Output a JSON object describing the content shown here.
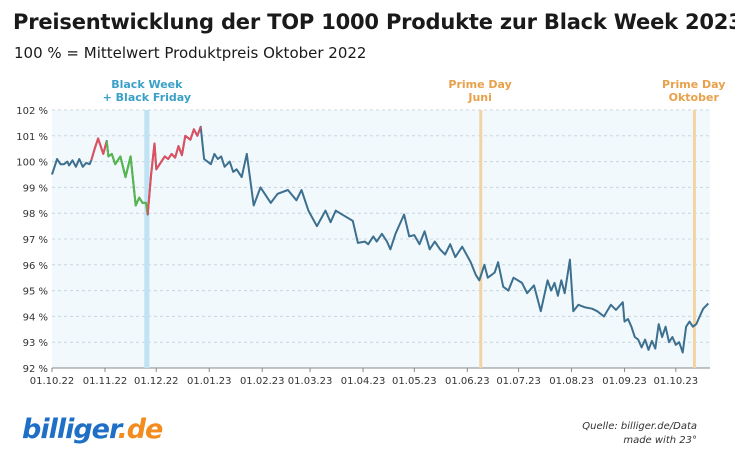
{
  "header": {
    "title": "Preisentwicklung der TOP 1000 Produkte zur Black Week 2023",
    "subtitle": "100 % = Mittelwert Produktpreis Oktober 2022"
  },
  "footer": {
    "logo_main": "billiger",
    "logo_tld": ".de",
    "source": "Quelle: billiger.de/Data",
    "made_with": "made with 23°"
  },
  "chart_data": {
    "type": "line",
    "title": "Preisentwicklung der TOP 1000 Produkte zur Black Week 2023",
    "subtitle": "100 % = Mittelwert Produktpreis Oktober 2022",
    "x_start": "2022-10-01",
    "x_end": "2023-10-21",
    "ylim": [
      92,
      102
    ],
    "y_ticks": [
      92,
      93,
      94,
      95,
      96,
      97,
      98,
      99,
      100,
      101,
      102
    ],
    "y_tick_labels": [
      "92 %",
      "93 %",
      "94 %",
      "95 %",
      "96 %",
      "97 %",
      "98 %",
      "99 %",
      "100 %",
      "101 %",
      "102 %"
    ],
    "x_ticks": [
      "2022-10-01",
      "2022-11-01",
      "2022-12-01",
      "2023-01-01",
      "2023-02-01",
      "2023-03-01",
      "2023-04-01",
      "2023-05-01",
      "2023-06-01",
      "2023-07-01",
      "2023-08-01",
      "2023-09-01",
      "2023-10-01"
    ],
    "x_tick_labels": [
      "01.10.22",
      "01.11.22",
      "01.12.22",
      "01.01.23",
      "01.02.23",
      "01.03.23",
      "01.04.23",
      "01.05.23",
      "01.06.23",
      "01.07.23",
      "01.08.23",
      "01.09.23",
      "01.10.23"
    ],
    "grid": true,
    "colors": {
      "line": "#3d6f8e",
      "rise": "#e0505e",
      "fall": "#55b84a",
      "black_week_band": "#bfe3f3",
      "prime_band": "#f3d3a4",
      "annotation_black_week": "#3aa0c8",
      "annotation_prime": "#e8a04a",
      "plot_bg": "#f2f9fd"
    },
    "highlights": [
      {
        "start": "2022-11-24",
        "end": "2022-11-27",
        "label_lines": [
          "Black Week",
          "+ Black Friday"
        ],
        "kind": "black_week"
      },
      {
        "start": "2023-06-08",
        "end": "2023-06-09",
        "label_lines": [
          "Prime Day",
          "Juni"
        ],
        "kind": "prime"
      },
      {
        "start": "2023-10-11",
        "end": "2023-10-12",
        "label_lines": [
          "Prime Day",
          "Oktober"
        ],
        "kind": "prime"
      }
    ],
    "series": [
      {
        "points": [
          [
            "2022-10-01",
            99.5
          ],
          [
            "2022-10-04",
            100.1
          ],
          [
            "2022-10-06",
            99.9
          ],
          [
            "2022-10-08",
            99.9
          ],
          [
            "2022-10-10",
            100.0
          ],
          [
            "2022-10-11",
            99.85
          ],
          [
            "2022-10-13",
            100.05
          ],
          [
            "2022-10-15",
            99.8
          ],
          [
            "2022-10-17",
            100.1
          ],
          [
            "2022-10-19",
            99.8
          ],
          [
            "2022-10-21",
            99.95
          ],
          [
            "2022-10-23",
            99.9
          ],
          [
            "2022-10-24",
            100.05
          ],
          [
            "2022-10-26",
            100.5
          ],
          [
            "2022-10-28",
            100.9
          ],
          [
            "2022-10-31",
            100.3
          ],
          [
            "2022-11-02",
            100.8
          ],
          [
            "2022-11-03",
            100.2
          ],
          [
            "2022-11-05",
            100.3
          ],
          [
            "2022-11-07",
            99.9
          ],
          [
            "2022-11-10",
            100.2
          ],
          [
            "2022-11-13",
            99.4
          ],
          [
            "2022-11-16",
            100.2
          ],
          [
            "2022-11-19",
            98.3
          ],
          [
            "2022-11-21",
            98.6
          ],
          [
            "2022-11-23",
            98.4
          ],
          [
            "2022-11-25",
            98.4
          ],
          [
            "2022-11-26",
            97.95
          ],
          [
            "2022-11-28",
            99.5
          ],
          [
            "2022-11-30",
            100.7
          ],
          [
            "2022-12-01",
            99.7
          ],
          [
            "2022-12-04",
            100.0
          ],
          [
            "2022-12-06",
            100.2
          ],
          [
            "2022-12-08",
            100.1
          ],
          [
            "2022-12-10",
            100.3
          ],
          [
            "2022-12-12",
            100.15
          ],
          [
            "2022-12-14",
            100.6
          ],
          [
            "2022-12-16",
            100.25
          ],
          [
            "2022-12-18",
            101.0
          ],
          [
            "2022-12-21",
            100.85
          ],
          [
            "2022-12-23",
            101.25
          ],
          [
            "2022-12-25",
            101.0
          ],
          [
            "2022-12-27",
            101.35
          ],
          [
            "2022-12-29",
            100.1
          ],
          [
            "2023-01-02",
            99.9
          ],
          [
            "2023-01-04",
            100.3
          ],
          [
            "2023-01-06",
            100.1
          ],
          [
            "2023-01-08",
            100.2
          ],
          [
            "2023-01-10",
            99.8
          ],
          [
            "2023-01-13",
            100.0
          ],
          [
            "2023-01-15",
            99.6
          ],
          [
            "2023-01-17",
            99.7
          ],
          [
            "2023-01-20",
            99.4
          ],
          [
            "2023-01-23",
            100.3
          ],
          [
            "2023-01-27",
            98.3
          ],
          [
            "2023-01-31",
            99.0
          ],
          [
            "2023-02-06",
            98.4
          ],
          [
            "2023-02-10",
            98.75
          ],
          [
            "2023-02-16",
            98.9
          ],
          [
            "2023-02-21",
            98.5
          ],
          [
            "2023-02-24",
            98.9
          ],
          [
            "2023-02-28",
            98.1
          ],
          [
            "2023-03-05",
            97.5
          ],
          [
            "2023-03-10",
            98.1
          ],
          [
            "2023-03-13",
            97.65
          ],
          [
            "2023-03-16",
            98.1
          ],
          [
            "2023-03-21",
            97.9
          ],
          [
            "2023-03-26",
            97.7
          ],
          [
            "2023-03-29",
            96.85
          ],
          [
            "2023-04-02",
            96.9
          ],
          [
            "2023-04-04",
            96.8
          ],
          [
            "2023-04-07",
            97.1
          ],
          [
            "2023-04-09",
            96.9
          ],
          [
            "2023-04-12",
            97.2
          ],
          [
            "2023-04-15",
            96.9
          ],
          [
            "2023-04-17",
            96.6
          ],
          [
            "2023-04-20",
            97.2
          ],
          [
            "2023-04-22",
            97.5
          ],
          [
            "2023-04-25",
            97.95
          ],
          [
            "2023-04-28",
            97.1
          ],
          [
            "2023-05-01",
            97.15
          ],
          [
            "2023-05-04",
            96.8
          ],
          [
            "2023-05-07",
            97.3
          ],
          [
            "2023-05-10",
            96.6
          ],
          [
            "2023-05-13",
            96.9
          ],
          [
            "2023-05-16",
            96.6
          ],
          [
            "2023-05-19",
            96.4
          ],
          [
            "2023-05-22",
            96.8
          ],
          [
            "2023-05-25",
            96.3
          ],
          [
            "2023-05-29",
            96.7
          ],
          [
            "2023-06-03",
            96.1
          ],
          [
            "2023-06-06",
            95.6
          ],
          [
            "2023-06-08",
            95.4
          ],
          [
            "2023-06-11",
            96.0
          ],
          [
            "2023-06-13",
            95.5
          ],
          [
            "2023-06-17",
            95.7
          ],
          [
            "2023-06-19",
            96.1
          ],
          [
            "2023-06-22",
            95.15
          ],
          [
            "2023-06-25",
            95.0
          ],
          [
            "2023-06-28",
            95.5
          ],
          [
            "2023-07-03",
            95.3
          ],
          [
            "2023-07-06",
            94.9
          ],
          [
            "2023-07-10",
            95.2
          ],
          [
            "2023-07-14",
            94.2
          ],
          [
            "2023-07-18",
            95.4
          ],
          [
            "2023-07-20",
            95.0
          ],
          [
            "2023-07-22",
            95.3
          ],
          [
            "2023-07-24",
            94.8
          ],
          [
            "2023-07-26",
            95.4
          ],
          [
            "2023-07-28",
            94.9
          ],
          [
            "2023-07-31",
            96.2
          ],
          [
            "2023-08-02",
            94.2
          ],
          [
            "2023-08-05",
            94.45
          ],
          [
            "2023-08-09",
            94.35
          ],
          [
            "2023-08-13",
            94.3
          ],
          [
            "2023-08-16",
            94.2
          ],
          [
            "2023-08-20",
            94.0
          ],
          [
            "2023-08-24",
            94.45
          ],
          [
            "2023-08-27",
            94.25
          ],
          [
            "2023-08-31",
            94.55
          ],
          [
            "2023-09-01",
            93.8
          ],
          [
            "2023-09-03",
            93.9
          ],
          [
            "2023-09-05",
            93.6
          ],
          [
            "2023-09-07",
            93.2
          ],
          [
            "2023-09-09",
            93.1
          ],
          [
            "2023-09-11",
            92.8
          ],
          [
            "2023-09-13",
            93.1
          ],
          [
            "2023-09-15",
            92.7
          ],
          [
            "2023-09-17",
            93.05
          ],
          [
            "2023-09-19",
            92.75
          ],
          [
            "2023-09-21",
            93.7
          ],
          [
            "2023-09-23",
            93.2
          ],
          [
            "2023-09-25",
            93.6
          ],
          [
            "2023-09-27",
            93.0
          ],
          [
            "2023-09-29",
            93.2
          ],
          [
            "2023-10-01",
            92.9
          ],
          [
            "2023-10-03",
            93.0
          ],
          [
            "2023-10-05",
            92.6
          ],
          [
            "2023-10-07",
            93.6
          ],
          [
            "2023-10-09",
            93.8
          ],
          [
            "2023-10-11",
            93.6
          ],
          [
            "2023-10-13",
            93.7
          ],
          [
            "2023-10-15",
            94.0
          ],
          [
            "2023-10-17",
            94.3
          ],
          [
            "2023-10-20",
            94.5
          ]
        ],
        "colored_segments": [
          {
            "start": "2022-10-24",
            "end": "2022-11-02",
            "color": "#e0505e"
          },
          {
            "start": "2022-11-02",
            "end": "2022-11-26",
            "color": "#55b84a"
          },
          {
            "start": "2022-11-26",
            "end": "2022-12-27",
            "color": "#e0505e"
          }
        ]
      }
    ]
  }
}
